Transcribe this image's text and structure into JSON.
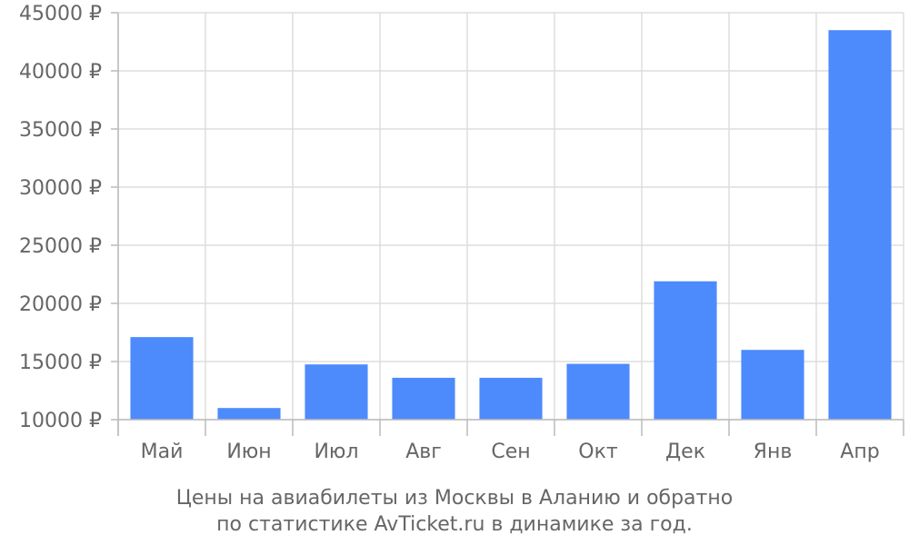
{
  "chart_data": {
    "type": "bar",
    "categories": [
      "Май",
      "Июн",
      "Июл",
      "Авг",
      "Сен",
      "Окт",
      "Дек",
      "Янв",
      "Апр"
    ],
    "values": [
      17100,
      11000,
      14750,
      13600,
      13600,
      14800,
      21900,
      16000,
      43500
    ],
    "ylim": [
      10000,
      45000
    ],
    "yticks": [
      10000,
      15000,
      20000,
      25000,
      30000,
      35000,
      40000,
      45000
    ],
    "ytick_labels": [
      "10000 ₽",
      "15000 ₽",
      "20000 ₽",
      "25000 ₽",
      "30000 ₽",
      "35000 ₽",
      "40000 ₽",
      "45000 ₽"
    ],
    "grid": true,
    "bar_color": "#4d8afc",
    "caption_line1": "Цены на авиабилеты из Москвы в Аланию и обратно",
    "caption_line2": "по статистике AvTicket.ru в динамике за год."
  }
}
